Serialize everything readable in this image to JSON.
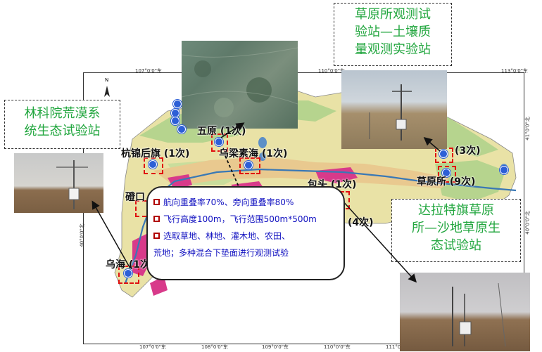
{
  "map": {
    "lon_ticks_top": [
      "107°0'0\"东",
      "110°0'0\"东",
      "113°0'0\"东"
    ],
    "lon_ticks_bottom": [
      "107°0'0\"东",
      "108°0'0\"东",
      "109°0'0\"东",
      "110°0'0\"东",
      "111°0'0\"东"
    ],
    "lat_ticks_left": [
      "40°0'0\"北"
    ],
    "lat_ticks_right": [
      "41°0'0\"北",
      "40°0'0\"北",
      "39°0'0\"北"
    ],
    "north_arrow": "N",
    "colors": {
      "sand": "#e9e2a6",
      "grass": "#b6d48e",
      "farmland": "#e9c98f",
      "desert_pink": "#d83a8a",
      "water": "#5c8fc7",
      "river": "#3a78b5",
      "site_box": "#e01010",
      "site_dot": "#2d5fd6"
    }
  },
  "sites": {
    "wuyuan": {
      "name": "五原",
      "count": "(1次)"
    },
    "hangjinhouqi": {
      "name": "杭锦后旗",
      "count": "(1次)"
    },
    "wulatehai": {
      "name": "乌梁素海",
      "count": "(1次)"
    },
    "dengkou": {
      "name": "磴口"
    },
    "wuhai": {
      "name": "乌海",
      "count": "(1次)"
    },
    "baotou": {
      "name": "包头",
      "count": "(1次)",
      "count2": "(4次)"
    },
    "caoyuansuo": {
      "name": "草原所",
      "count": "(9次)",
      "count_top": "(3次)"
    }
  },
  "callouts": {
    "linkeyuan": "林科院荒漠系统生态试验站",
    "linkeyuan_lines": [
      "林科院荒漠系",
      "统生态试验站"
    ],
    "caoyuansuo_station_lines": [
      "草原所观测试",
      "验站—土壤质",
      "量观测实验站"
    ],
    "dalate_lines": [
      "达拉特旗草原",
      "所—沙地草原生",
      "态试验站"
    ]
  },
  "info": {
    "lines": [
      "航向重叠率70%、旁向重叠率80%",
      "飞行高度100m，飞行范围500m*500m",
      "选取草地、林地、灌木地、农田、",
      "荒地；多种混合下垫面进行观测试验"
    ]
  }
}
